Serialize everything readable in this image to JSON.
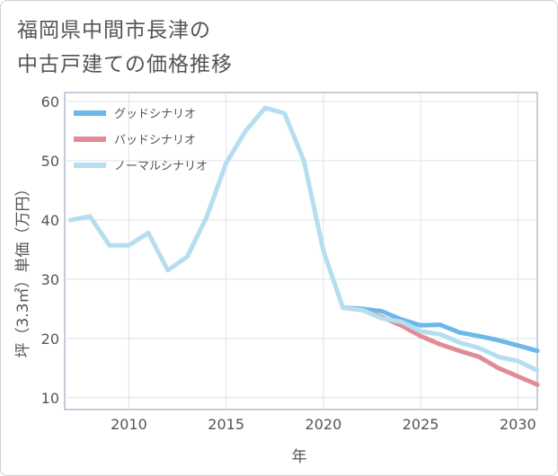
{
  "chart_data": {
    "type": "line",
    "title": "福岡県中間市長津の\n中古戸建ての価格推移",
    "xlabel": "年",
    "ylabel": "坪（3.3㎡）単価（万円）",
    "xlim": [
      2006.7,
      2031
    ],
    "ylim": [
      8,
      61.5
    ],
    "xticks": [
      2010,
      2015,
      2020,
      2025,
      2030
    ],
    "yticks": [
      10,
      20,
      30,
      40,
      50,
      60
    ],
    "grid": true,
    "legend_position": "top-left",
    "series": [
      {
        "name": "グッドシナリオ",
        "color": "#6cb8ea",
        "x": [
          2021,
          2022,
          2023,
          2024,
          2025,
          2026,
          2027,
          2028,
          2029,
          2030,
          2031
        ],
        "y": [
          25.2,
          25.0,
          24.6,
          23.2,
          22.2,
          22.3,
          21.0,
          20.4,
          19.7,
          18.8,
          17.9
        ]
      },
      {
        "name": "バッドシナリオ",
        "color": "#e08c96",
        "x": [
          2021,
          2022,
          2023,
          2024,
          2025,
          2026,
          2027,
          2028,
          2029,
          2030,
          2031
        ],
        "y": [
          25.2,
          24.8,
          23.6,
          22.2,
          20.4,
          19.0,
          17.9,
          16.9,
          15.0,
          13.6,
          12.2
        ]
      },
      {
        "name": "ノーマルシナリオ",
        "color": "#b5def0",
        "x": [
          2007,
          2008,
          2009,
          2010,
          2011,
          2012,
          2013,
          2014,
          2015,
          2016,
          2017,
          2018,
          2019,
          2020,
          2021,
          2022,
          2023,
          2024,
          2025,
          2026,
          2027,
          2028,
          2029,
          2030,
          2031
        ],
        "y": [
          40.0,
          40.6,
          35.7,
          35.7,
          37.8,
          31.5,
          33.8,
          40.5,
          49.6,
          55.0,
          58.9,
          58.0,
          50.0,
          34.8,
          25.2,
          24.8,
          23.4,
          22.8,
          21.2,
          20.7,
          19.3,
          18.4,
          16.9,
          16.2,
          14.6
        ]
      }
    ]
  }
}
